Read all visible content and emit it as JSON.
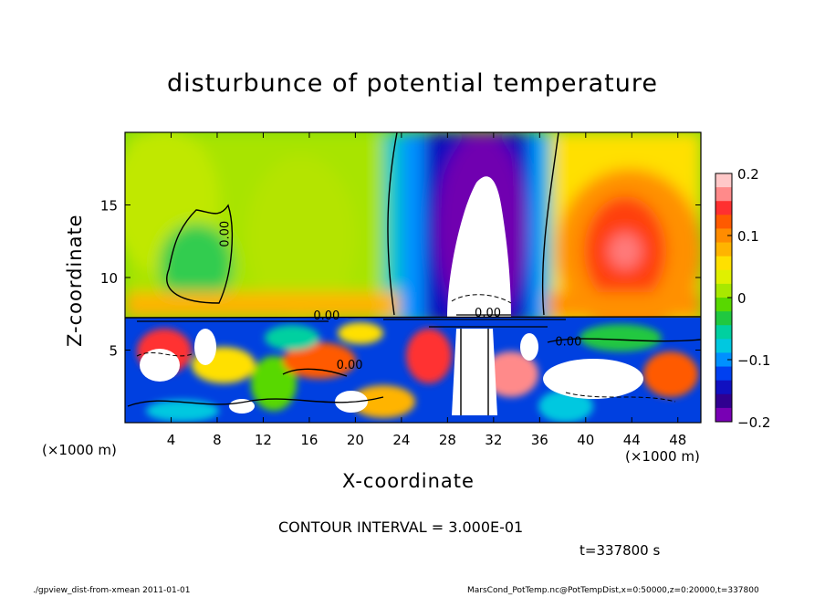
{
  "title": "disturbunce of potential temperature",
  "xlabel": "X-coordinate",
  "ylabel": "Z-coordinate",
  "x_unit_left": "(×1000 m)",
  "x_unit_right": "(×1000 m)",
  "contour_interval_text": "CONTOUR INTERVAL = 3.000E-01",
  "time_text": "t=337800 s",
  "footer_left": "./gpview_dist-from-xmean   2011-01-01",
  "footer_right": "MarsCond_PotTemp.nc@PotTempDist,x=0:50000,z=0:20000,t=337800",
  "chart_data": {
    "type": "heatmap",
    "title": "disturbunce of potential temperature",
    "xlabel": "X-coordinate",
    "ylabel": "Z-coordinate",
    "xlim": [
      0,
      50
    ],
    "ylim": [
      0,
      20
    ],
    "x_ticks": [
      4,
      8,
      12,
      16,
      20,
      24,
      28,
      32,
      36,
      40,
      44,
      48
    ],
    "y_ticks": [
      5,
      10,
      15
    ],
    "colorbar": {
      "range": [
        -0.2,
        0.2
      ],
      "ticks": [
        0.2,
        0.1,
        0,
        -0.1,
        -0.2
      ],
      "tick_labels": [
        "0.2",
        "0.1",
        "0",
        "−0.1",
        "−0.2"
      ],
      "colors_high_to_low": [
        "#ffc8c8",
        "#ff8a8a",
        "#ff3030",
        "#ff5a00",
        "#ff8c00",
        "#ffb400",
        "#ffe000",
        "#e0f000",
        "#a8e800",
        "#58d800",
        "#20c840",
        "#00d0a0",
        "#00c8e0",
        "#0090ff",
        "#0040f0",
        "#1010c0",
        "#300090",
        "#7800b4"
      ]
    },
    "contour_labels": [
      {
        "text": "0.00",
        "x": 9,
        "z": 13
      },
      {
        "text": "0.00",
        "x": 19.5,
        "z": 3.7
      },
      {
        "text": "0.00",
        "x": 38.5,
        "z": 5.3
      },
      {
        "text": "0.00",
        "x": 17.5,
        "z": 7.1
      },
      {
        "text": "0.00",
        "x": 31.5,
        "z": 7.3
      }
    ],
    "contour_interval": 0.3,
    "time_s": 337800
  }
}
